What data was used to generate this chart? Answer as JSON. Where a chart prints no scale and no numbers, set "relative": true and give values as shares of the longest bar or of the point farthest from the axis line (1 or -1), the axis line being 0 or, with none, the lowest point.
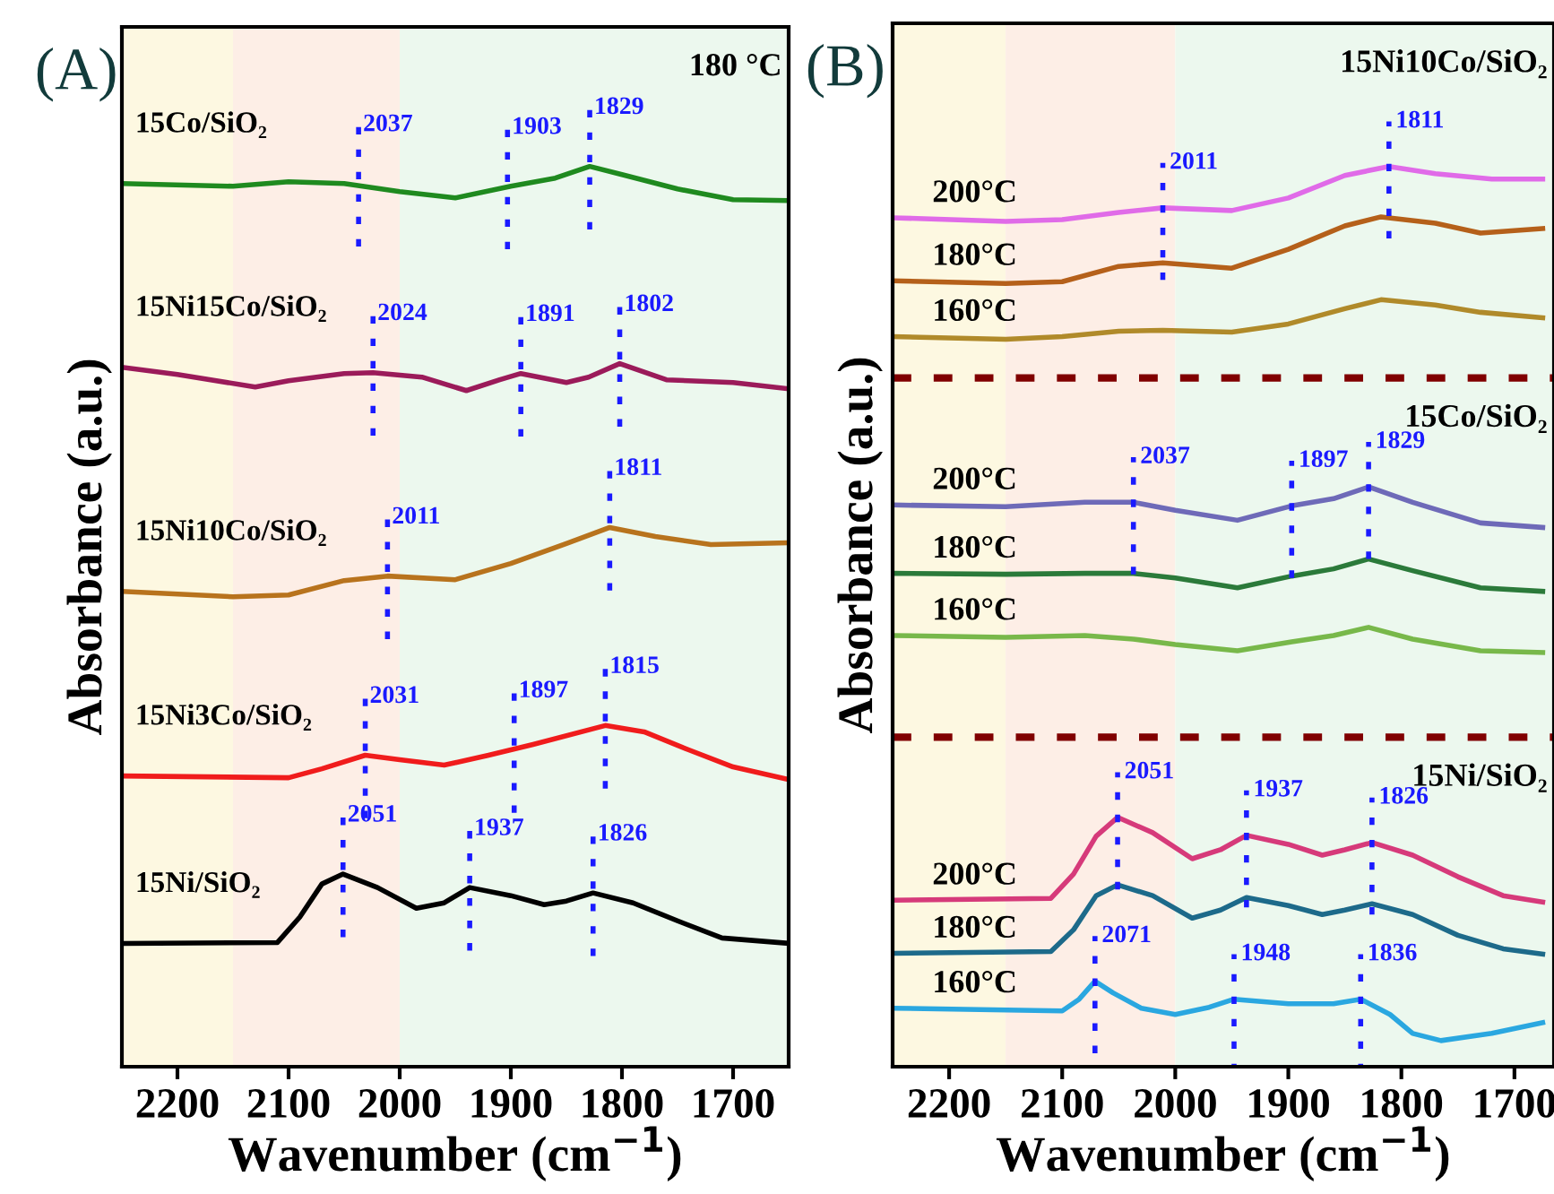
{
  "chart_data": [
    {
      "type": "line",
      "title": "(A)",
      "xlabel": "Wavenumber (cm$^{−1}$)",
      "ylabel": "Absorbance (a.u.)",
      "relative": true,
      "grid": false,
      "legend": false,
      "tick_labels": "x",
      "xlim": [
        2250,
        1650
      ],
      "xticks": [
        2200,
        2100,
        2000,
        1900,
        1800,
        1700
      ],
      "bands": [
        {
          "axis": "x",
          "from": 2250,
          "to": 2150,
          "color": "#fdf8e1"
        },
        {
          "axis": "x",
          "from": 2150,
          "to": 2000,
          "color": "#fdeee6"
        },
        {
          "axis": "x",
          "from": 2000,
          "to": 1650,
          "color": "#ecf8ee"
        }
      ],
      "series": [
        {
          "name": "15Co/SiO₂",
          "color": "#1f8a1f",
          "x": [
            2250,
            2150,
            2100,
            2050,
            2000,
            1950,
            1900,
            1860,
            1829,
            1800,
            1750,
            1700,
            1650
          ],
          "values": [
            0.981,
            0.978,
            0.983,
            0.981,
            0.972,
            0.965,
            0.978,
            0.987,
            1.0,
            0.991,
            0.975,
            0.963,
            0.962
          ]
        },
        {
          "name": "15Ni15Co/SiO₂",
          "color": "#9b1b5a",
          "x": [
            2250,
            2200,
            2130,
            2100,
            2050,
            2024,
            1980,
            1940,
            1910,
            1891,
            1850,
            1830,
            1802,
            1760,
            1700,
            1650
          ],
          "values": [
            0.777,
            0.769,
            0.755,
            0.762,
            0.77,
            0.771,
            0.766,
            0.751,
            0.763,
            0.77,
            0.76,
            0.766,
            0.781,
            0.763,
            0.76,
            0.753
          ]
        },
        {
          "name": "15Ni10Co/SiO₂",
          "color": "#b8731d",
          "x": [
            2250,
            2150,
            2100,
            2050,
            2011,
            1950,
            1900,
            1850,
            1811,
            1770,
            1720,
            1650
          ],
          "values": [
            0.528,
            0.522,
            0.524,
            0.54,
            0.545,
            0.541,
            0.559,
            0.581,
            0.599,
            0.589,
            0.58,
            0.582
          ]
        },
        {
          "name": "15Ni3Co/SiO₂",
          "color": "#f01c1c",
          "x": [
            2250,
            2100,
            2070,
            2031,
            2000,
            1960,
            1920,
            1880,
            1815,
            1780,
            1740,
            1700,
            1650
          ],
          "values": [
            0.323,
            0.321,
            0.331,
            0.346,
            0.341,
            0.335,
            0.346,
            0.358,
            0.379,
            0.372,
            0.352,
            0.333,
            0.319
          ]
        },
        {
          "name": "15Ni/SiO₂",
          "color": "#000000",
          "x": [
            2250,
            2110,
            2090,
            2070,
            2051,
            2020,
            1985,
            1960,
            1937,
            1900,
            1870,
            1850,
            1826,
            1790,
            1750,
            1710,
            1650
          ],
          "values": [
            0.137,
            0.138,
            0.166,
            0.203,
            0.214,
            0.199,
            0.176,
            0.182,
            0.199,
            0.19,
            0.18,
            0.184,
            0.193,
            0.182,
            0.162,
            0.143,
            0.137
          ]
        }
      ],
      "annotations": [
        "180 °C",
        {
          "text": "2037",
          "x": 2037,
          "y": 0.981
        },
        {
          "text": "1903",
          "x": 1903,
          "y": 0.978
        },
        {
          "text": "1829",
          "x": 1829,
          "y": 1.0
        },
        {
          "text": "2024",
          "x": 2024,
          "y": 0.771
        },
        {
          "text": "1891",
          "x": 1891,
          "y": 0.77
        },
        {
          "text": "1802",
          "x": 1802,
          "y": 0.781
        },
        {
          "text": "2011",
          "x": 2011,
          "y": 0.545
        },
        {
          "text": "1811",
          "x": 1811,
          "y": 0.599
        },
        {
          "text": "2031",
          "x": 2031,
          "y": 0.346
        },
        {
          "text": "1897",
          "x": 1897,
          "y": 0.352
        },
        {
          "text": "1815",
          "x": 1815,
          "y": 0.379
        },
        {
          "text": "2051",
          "x": 2051,
          "y": 0.214
        },
        {
          "text": "1937",
          "x": 1937,
          "y": 0.199
        },
        {
          "text": "1826",
          "x": 1826,
          "y": 0.193
        }
      ]
    },
    {
      "type": "line",
      "title": "(B)",
      "xlabel": "Wavenumber (cm$^{−1}$)",
      "ylabel": "Absorbance (a.u.)",
      "relative": true,
      "grid": false,
      "legend": false,
      "tick_labels": "x",
      "xlim": [
        2250,
        1665
      ],
      "xticks": [
        2200,
        2100,
        2000,
        1900,
        1800,
        1700
      ],
      "bands": [
        {
          "axis": "x",
          "from": 2250,
          "to": 2150,
          "color": "#fdf8e1"
        },
        {
          "axis": "x",
          "from": 2150,
          "to": 2000,
          "color": "#fdeee6"
        },
        {
          "axis": "x",
          "from": 2000,
          "to": 1665,
          "color": "#ecf8ee"
        }
      ],
      "ref_lines": [
        {
          "axis": "y",
          "value": 0.765,
          "color": "#800000",
          "line_style": "dotted"
        },
        {
          "axis": "y",
          "value": 0.366,
          "color": "#800000",
          "line_style": "dotted"
        }
      ],
      "series": [
        {
          "name": "200°C",
          "color": "#e06be8",
          "x": [
            2250,
            2150,
            2100,
            2050,
            2011,
            1950,
            1900,
            1850,
            1811,
            1770,
            1720,
            1675
          ],
          "values": [
            0.943,
            0.939,
            0.941,
            0.949,
            0.954,
            0.951,
            0.965,
            0.99,
            1.0,
            0.992,
            0.986,
            0.986
          ]
        },
        {
          "name": "180°C",
          "color": "#b5601a",
          "x": [
            2250,
            2150,
            2100,
            2050,
            2011,
            1950,
            1900,
            1850,
            1818,
            1770,
            1730,
            1675
          ],
          "values": [
            0.873,
            0.87,
            0.872,
            0.889,
            0.893,
            0.887,
            0.908,
            0.934,
            0.944,
            0.937,
            0.926,
            0.931
          ]
        },
        {
          "name": "160°C",
          "color": "#b08a2a",
          "x": [
            2250,
            2150,
            2100,
            2050,
            2011,
            1950,
            1900,
            1850,
            1818,
            1770,
            1730,
            1675
          ],
          "values": [
            0.811,
            0.808,
            0.811,
            0.817,
            0.818,
            0.816,
            0.825,
            0.842,
            0.852,
            0.846,
            0.838,
            0.832
          ]
        },
        {
          "name": "200°C",
          "color": "#6e6ab8",
          "x": [
            2250,
            2150,
            2080,
            2037,
            2000,
            1945,
            1897,
            1860,
            1829,
            1790,
            1730,
            1675
          ],
          "values": [
            0.624,
            0.622,
            0.627,
            0.627,
            0.618,
            0.607,
            0.623,
            0.631,
            0.644,
            0.627,
            0.604,
            0.599
          ]
        },
        {
          "name": "180°C",
          "color": "#2b7a3a",
          "x": [
            2250,
            2150,
            2080,
            2037,
            2000,
            1945,
            1897,
            1860,
            1829,
            1790,
            1730,
            1675
          ],
          "values": [
            0.548,
            0.547,
            0.548,
            0.548,
            0.543,
            0.532,
            0.545,
            0.553,
            0.564,
            0.551,
            0.532,
            0.528
          ]
        },
        {
          "name": "160°C",
          "color": "#78b84a",
          "x": [
            2250,
            2150,
            2080,
            2037,
            2000,
            1945,
            1897,
            1860,
            1829,
            1790,
            1730,
            1675
          ],
          "values": [
            0.479,
            0.477,
            0.479,
            0.475,
            0.469,
            0.462,
            0.472,
            0.479,
            0.488,
            0.475,
            0.462,
            0.46
          ]
        },
        {
          "name": "200°C",
          "color": "#d63a7a",
          "x": [
            2250,
            2110,
            2090,
            2070,
            2051,
            2020,
            1985,
            1960,
            1937,
            1900,
            1870,
            1850,
            1826,
            1790,
            1750,
            1710,
            1675
          ],
          "values": [
            0.185,
            0.187,
            0.214,
            0.256,
            0.277,
            0.26,
            0.231,
            0.241,
            0.257,
            0.247,
            0.235,
            0.241,
            0.249,
            0.235,
            0.211,
            0.19,
            0.183
          ]
        },
        {
          "name": "180°C",
          "color": "#1d6a8a",
          "x": [
            2250,
            2110,
            2090,
            2070,
            2051,
            2020,
            1985,
            1960,
            1937,
            1900,
            1870,
            1850,
            1826,
            1790,
            1750,
            1710,
            1675
          ],
          "values": [
            0.126,
            0.128,
            0.152,
            0.19,
            0.202,
            0.19,
            0.165,
            0.174,
            0.188,
            0.179,
            0.169,
            0.174,
            0.181,
            0.169,
            0.146,
            0.131,
            0.125
          ]
        },
        {
          "name": "160°C",
          "color": "#2aa7e0",
          "x": [
            2250,
            2100,
            2085,
            2071,
            2055,
            2030,
            2000,
            1970,
            1948,
            1900,
            1860,
            1836,
            1810,
            1790,
            1765,
            1720,
            1675
          ],
          "values": [
            0.065,
            0.062,
            0.075,
            0.095,
            0.082,
            0.065,
            0.058,
            0.066,
            0.075,
            0.07,
            0.07,
            0.075,
            0.058,
            0.037,
            0.029,
            0.037,
            0.049
          ]
        }
      ],
      "annotations": [
        "15Ni10Co/SiO₂",
        "15Co/SiO₂",
        "15Ni/SiO₂",
        {
          "text": "2011",
          "x": 2011,
          "y": 0.954
        },
        {
          "text": "1811",
          "x": 1811,
          "y": 1.0
        },
        {
          "text": "2037",
          "x": 2037,
          "y": 0.627
        },
        {
          "text": "1897",
          "x": 1897,
          "y": 0.623
        },
        {
          "text": "1829",
          "x": 1829,
          "y": 0.644
        },
        {
          "text": "2051",
          "x": 2051,
          "y": 0.277
        },
        {
          "text": "1937",
          "x": 1937,
          "y": 0.257
        },
        {
          "text": "1826",
          "x": 1826,
          "y": 0.249
        },
        {
          "text": "2071",
          "x": 2071,
          "y": 0.095
        },
        {
          "text": "1948",
          "x": 1948,
          "y": 0.075
        },
        {
          "text": "1836",
          "x": 1836,
          "y": 0.075
        }
      ]
    }
  ]
}
